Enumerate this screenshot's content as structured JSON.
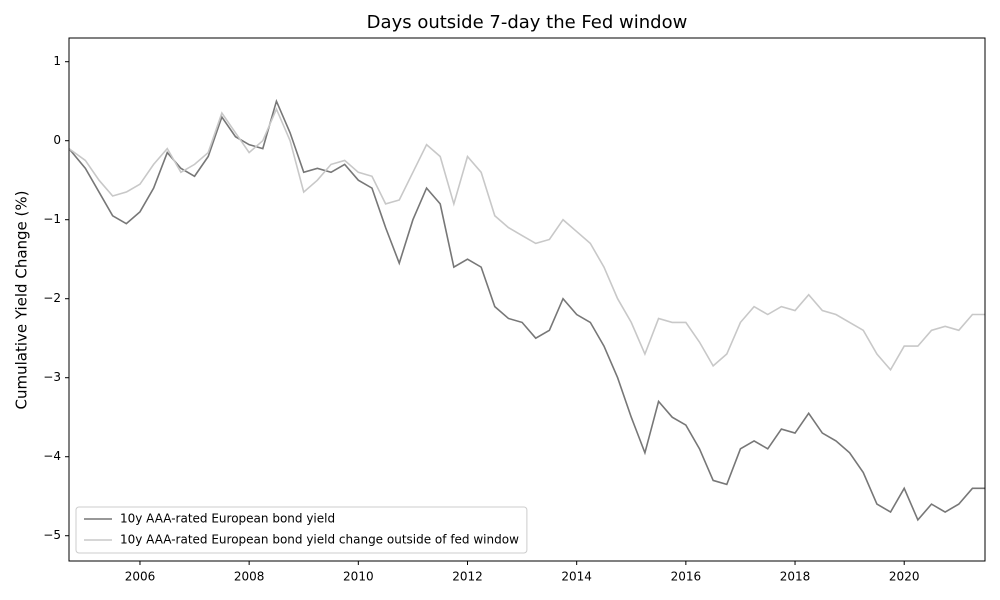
{
  "chart_data": {
    "type": "line",
    "title": "Days outside 7-day the Fed window",
    "y_label": "Cumulative Yield Change (%)",
    "x": [
      2004.7,
      2005.0,
      2005.25,
      2005.5,
      2005.75,
      2006.0,
      2006.25,
      2006.5,
      2006.75,
      2007.0,
      2007.25,
      2007.5,
      2007.75,
      2008.0,
      2008.25,
      2008.5,
      2008.75,
      2009.0,
      2009.25,
      2009.5,
      2009.75,
      2010.0,
      2010.25,
      2010.5,
      2010.75,
      2011.0,
      2011.25,
      2011.5,
      2011.75,
      2012.0,
      2012.25,
      2012.5,
      2012.75,
      2013.0,
      2013.25,
      2013.5,
      2013.75,
      2014.0,
      2014.25,
      2014.5,
      2014.75,
      2015.0,
      2015.25,
      2015.5,
      2015.75,
      2016.0,
      2016.25,
      2016.5,
      2016.75,
      2017.0,
      2017.25,
      2017.5,
      2017.75,
      2018.0,
      2018.25,
      2018.5,
      2018.75,
      2019.0,
      2019.25,
      2019.5,
      2019.75,
      2020.0,
      2020.25,
      2020.5,
      2020.75,
      2021.0,
      2021.25,
      2021.48
    ],
    "series": [
      {
        "name": "10y AAA-rated European bond yield",
        "color": "#777777",
        "values": [
          -0.1,
          -0.35,
          -0.65,
          -0.95,
          -1.05,
          -0.9,
          -0.6,
          -0.15,
          -0.35,
          -0.45,
          -0.2,
          0.3,
          0.05,
          -0.05,
          -0.1,
          0.5,
          0.1,
          -0.4,
          -0.35,
          -0.4,
          -0.3,
          -0.5,
          -0.6,
          -1.1,
          -1.55,
          -1.0,
          -0.6,
          -0.8,
          -1.6,
          -1.5,
          -1.6,
          -2.1,
          -2.25,
          -2.3,
          -2.5,
          -2.4,
          -2.0,
          -2.2,
          -2.3,
          -2.6,
          -3.0,
          -3.5,
          -3.95,
          -3.3,
          -3.5,
          -3.6,
          -3.9,
          -4.3,
          -4.35,
          -3.9,
          -3.8,
          -3.9,
          -3.65,
          -3.7,
          -3.45,
          -3.7,
          -3.8,
          -3.95,
          -4.2,
          -4.6,
          -4.7,
          -4.4,
          -4.8,
          -4.6,
          -4.7,
          -4.6,
          -4.4,
          -4.4
        ]
      },
      {
        "name": "10y AAA-rated European bond yield change outside of fed window",
        "color": "#c8c8c8",
        "values": [
          -0.1,
          -0.25,
          -0.5,
          -0.7,
          -0.65,
          -0.55,
          -0.3,
          -0.1,
          -0.4,
          -0.3,
          -0.15,
          0.35,
          0.1,
          -0.15,
          0.0,
          0.4,
          0.0,
          -0.65,
          -0.5,
          -0.3,
          -0.25,
          -0.4,
          -0.45,
          -0.8,
          -0.75,
          -0.4,
          -0.05,
          -0.2,
          -0.8,
          -0.2,
          -0.4,
          -0.95,
          -1.1,
          -1.2,
          -1.3,
          -1.25,
          -1.0,
          -1.15,
          -1.3,
          -1.6,
          -2.0,
          -2.3,
          -2.7,
          -2.25,
          -2.3,
          -2.3,
          -2.55,
          -2.85,
          -2.7,
          -2.3,
          -2.1,
          -2.2,
          -2.1,
          -2.15,
          -1.95,
          -2.15,
          -2.2,
          -2.3,
          -2.4,
          -2.7,
          -2.9,
          -2.6,
          -2.6,
          -2.4,
          -2.35,
          -2.4,
          -2.2,
          -2.2
        ]
      }
    ],
    "xlim": [
      2004.7,
      2021.48
    ],
    "ylim": [
      -5.32,
      1.3
    ],
    "xticks": [
      2006,
      2008,
      2010,
      2012,
      2014,
      2016,
      2018,
      2020
    ],
    "yticks": [
      {
        "value": -5,
        "label": "−5"
      },
      {
        "value": -4,
        "label": "−4"
      },
      {
        "value": -3,
        "label": "−3"
      },
      {
        "value": -2,
        "label": "−2"
      },
      {
        "value": -1,
        "label": "−1"
      },
      0,
      1
    ],
    "grid": false,
    "legend": "lower left"
  }
}
